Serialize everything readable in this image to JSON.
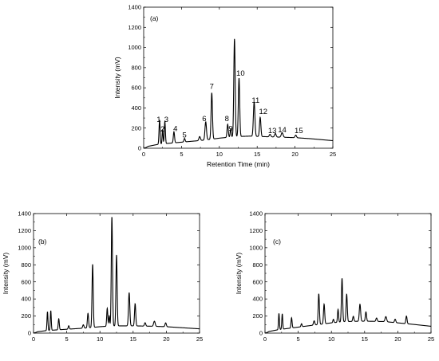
{
  "chart_data": [
    {
      "type": "line",
      "tag": "(a)",
      "xlabel": "Retention Time (min)",
      "ylabel": "Intensity (mV)",
      "xlim": [
        0,
        25
      ],
      "ylim": [
        0,
        1400
      ],
      "xticks": [
        0,
        5,
        10,
        15,
        20,
        25
      ],
      "yticks": [
        0,
        200,
        400,
        600,
        800,
        1000,
        1200,
        1400
      ],
      "baseline": [
        [
          0,
          10
        ],
        [
          2,
          40
        ],
        [
          5,
          60
        ],
        [
          8,
          80
        ],
        [
          10,
          100
        ],
        [
          12,
          115
        ],
        [
          14,
          120
        ],
        [
          16,
          115
        ],
        [
          18,
          110
        ],
        [
          20,
          105
        ],
        [
          22,
          95
        ],
        [
          25,
          75
        ]
      ],
      "peaks": [
        {
          "t": 2.1,
          "h": 240,
          "w": 0.07
        },
        {
          "t": 2.5,
          "h": 140,
          "w": 0.06
        },
        {
          "t": 2.8,
          "h": 220,
          "w": 0.07
        },
        {
          "t": 4.0,
          "h": 110,
          "w": 0.08
        },
        {
          "t": 5.4,
          "h": 35,
          "w": 0.08
        },
        {
          "t": 7.4,
          "h": 40,
          "w": 0.1
        },
        {
          "t": 8.2,
          "h": 180,
          "w": 0.1
        },
        {
          "t": 9.0,
          "h": 460,
          "w": 0.09
        },
        {
          "t": 11.1,
          "h": 130,
          "w": 0.08
        },
        {
          "t": 11.5,
          "h": 80,
          "w": 0.07
        },
        {
          "t": 12.0,
          "h": 970,
          "w": 0.09
        },
        {
          "t": 12.6,
          "h": 580,
          "w": 0.09
        },
        {
          "t": 14.6,
          "h": 340,
          "w": 0.1
        },
        {
          "t": 15.4,
          "h": 190,
          "w": 0.09
        },
        {
          "t": 16.7,
          "h": 25,
          "w": 0.1
        },
        {
          "t": 17.4,
          "h": 35,
          "w": 0.1
        },
        {
          "t": 18.3,
          "h": 45,
          "w": 0.12
        },
        {
          "t": 20.1,
          "h": 25,
          "w": 0.1
        }
      ],
      "peak_labels": [
        {
          "text": "1",
          "t": 2.0,
          "y": 262
        },
        {
          "text": "2",
          "t": 2.5,
          "y": 165
        },
        {
          "text": "3",
          "t": 3.0,
          "y": 262
        },
        {
          "text": "4",
          "t": 4.2,
          "y": 170
        },
        {
          "text": "5",
          "t": 5.4,
          "y": 105
        },
        {
          "text": "6",
          "t": 8.0,
          "y": 270
        },
        {
          "text": "7",
          "t": 9.0,
          "y": 590
        },
        {
          "text": "8",
          "t": 11.0,
          "y": 270
        },
        {
          "text": "9",
          "t": 11.5,
          "y": 170
        },
        {
          "text": "10",
          "t": 12.8,
          "y": 720
        },
        {
          "text": "11",
          "t": 14.8,
          "y": 450
        },
        {
          "text": "12",
          "t": 15.8,
          "y": 340
        },
        {
          "text": "13",
          "t": 17.0,
          "y": 150
        },
        {
          "text": "14",
          "t": 18.3,
          "y": 160
        },
        {
          "text": "15",
          "t": 20.5,
          "y": 150
        }
      ]
    },
    {
      "type": "line",
      "tag": "(b)",
      "xlabel": "",
      "ylabel": "Intensity (mV)",
      "xlim": [
        0,
        25
      ],
      "ylim": [
        0,
        1400
      ],
      "xticks": [
        0,
        5,
        10,
        15,
        20,
        25
      ],
      "yticks": [
        0,
        200,
        400,
        600,
        800,
        1000,
        1200,
        1400
      ],
      "baseline": [
        [
          0,
          10
        ],
        [
          2,
          30
        ],
        [
          5,
          45
        ],
        [
          8,
          60
        ],
        [
          10,
          75
        ],
        [
          12,
          85
        ],
        [
          15,
          85
        ],
        [
          18,
          80
        ],
        [
          20,
          75
        ],
        [
          22,
          65
        ],
        [
          25,
          50
        ]
      ],
      "peaks": [
        {
          "t": 2.1,
          "h": 220,
          "w": 0.07
        },
        {
          "t": 2.6,
          "h": 230,
          "w": 0.07
        },
        {
          "t": 3.8,
          "h": 130,
          "w": 0.08
        },
        {
          "t": 5.3,
          "h": 40,
          "w": 0.08
        },
        {
          "t": 7.5,
          "h": 40,
          "w": 0.1
        },
        {
          "t": 8.2,
          "h": 170,
          "w": 0.09
        },
        {
          "t": 8.9,
          "h": 740,
          "w": 0.09
        },
        {
          "t": 11.1,
          "h": 210,
          "w": 0.08
        },
        {
          "t": 11.4,
          "h": 120,
          "w": 0.07
        },
        {
          "t": 11.8,
          "h": 1280,
          "w": 0.09
        },
        {
          "t": 12.5,
          "h": 830,
          "w": 0.09
        },
        {
          "t": 14.4,
          "h": 390,
          "w": 0.1
        },
        {
          "t": 15.3,
          "h": 260,
          "w": 0.09
        },
        {
          "t": 16.8,
          "h": 40,
          "w": 0.1
        },
        {
          "t": 18.2,
          "h": 60,
          "w": 0.12
        },
        {
          "t": 19.9,
          "h": 45,
          "w": 0.1
        }
      ],
      "peak_labels": []
    },
    {
      "type": "line",
      "tag": "(c)",
      "xlabel": "",
      "ylabel": "Intensity (mV)",
      "xlim": [
        0,
        25
      ],
      "ylim": [
        0,
        1400
      ],
      "xticks": [
        0,
        5,
        10,
        15,
        20,
        25
      ],
      "yticks": [
        0,
        200,
        400,
        600,
        800,
        1000,
        1200,
        1400
      ],
      "baseline": [
        [
          0,
          10
        ],
        [
          2,
          40
        ],
        [
          5,
          70
        ],
        [
          8,
          100
        ],
        [
          10,
          120
        ],
        [
          12,
          135
        ],
        [
          15,
          140
        ],
        [
          18,
          135
        ],
        [
          20,
          120
        ],
        [
          22,
          105
        ],
        [
          25,
          80
        ]
      ],
      "peaks": [
        {
          "t": 2.1,
          "h": 190,
          "w": 0.07
        },
        {
          "t": 2.6,
          "h": 180,
          "w": 0.07
        },
        {
          "t": 4.0,
          "h": 120,
          "w": 0.08
        },
        {
          "t": 5.5,
          "h": 35,
          "w": 0.08
        },
        {
          "t": 7.4,
          "h": 50,
          "w": 0.1
        },
        {
          "t": 8.1,
          "h": 360,
          "w": 0.09
        },
        {
          "t": 8.9,
          "h": 230,
          "w": 0.09
        },
        {
          "t": 10.3,
          "h": 40,
          "w": 0.08
        },
        {
          "t": 11.0,
          "h": 150,
          "w": 0.08
        },
        {
          "t": 11.6,
          "h": 510,
          "w": 0.09
        },
        {
          "t": 12.3,
          "h": 320,
          "w": 0.09
        },
        {
          "t": 13.3,
          "h": 60,
          "w": 0.09
        },
        {
          "t": 14.3,
          "h": 200,
          "w": 0.1
        },
        {
          "t": 15.2,
          "h": 110,
          "w": 0.09
        },
        {
          "t": 16.8,
          "h": 40,
          "w": 0.1
        },
        {
          "t": 18.2,
          "h": 60,
          "w": 0.12
        },
        {
          "t": 19.6,
          "h": 40,
          "w": 0.1
        },
        {
          "t": 21.3,
          "h": 90,
          "w": 0.09
        }
      ],
      "peak_labels": []
    }
  ]
}
